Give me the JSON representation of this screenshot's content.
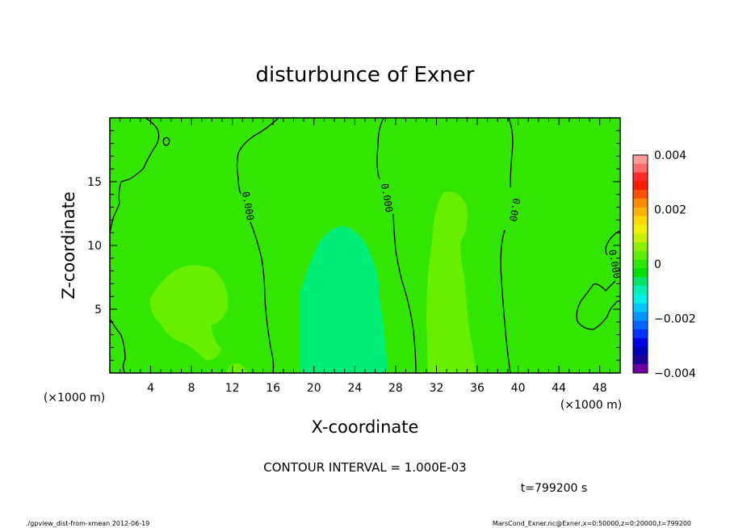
{
  "chart_data": {
    "type": "heatmap",
    "title": "disturbunce of Exner",
    "xlabel": "X-coordinate",
    "ylabel": "Z-coordinate",
    "x_unit_label": "(×1000 m)",
    "xlim": [
      0,
      50
    ],
    "ylim": [
      0,
      20
    ],
    "xticks": [
      4,
      8,
      12,
      16,
      20,
      24,
      28,
      32,
      36,
      40,
      44,
      48
    ],
    "yticks": [
      5,
      10,
      15
    ],
    "colorbar": {
      "range": [
        -0.004,
        0.004
      ],
      "tick_labels": [
        "0.004",
        "0.002",
        "0",
        "−0.002",
        "−0.004"
      ],
      "tick_values": [
        0.004,
        0.002,
        0,
        -0.002,
        -0.004
      ],
      "colors_top_to_bottom": [
        "#ff9a9a",
        "#ff6a6a",
        "#ff2a2a",
        "#ff1a00",
        "#ff5000",
        "#ff8c00",
        "#ffb000",
        "#ffd800",
        "#f0f000",
        "#c8f000",
        "#8cf000",
        "#5ef000",
        "#2ee800",
        "#00e000",
        "#00e66a",
        "#00f0b4",
        "#00f0e6",
        "#00c8ff",
        "#0096ff",
        "#0064ff",
        "#0032ff",
        "#0000e6",
        "#0000b4",
        "#1e0096",
        "#7000a0"
      ]
    },
    "contour_interval_text": "CONTOUR INTERVAL = 1.000E-03",
    "contour_labels": [
      "0",
      "0.000",
      "0.000",
      "0.00",
      "0.000"
    ],
    "field_regions": [
      {
        "name": "background",
        "value": 0.0003
      },
      {
        "name": "positive-left",
        "x_center": 7.5,
        "z_center": 6.5,
        "value": 0.0007
      },
      {
        "name": "negative-center",
        "x_center": 23,
        "z_center": 5,
        "value": -0.0003
      },
      {
        "name": "positive-right",
        "x_center": 33,
        "z_center": 7,
        "value": 0.0007
      },
      {
        "name": "background-right",
        "x_center": 44,
        "z_center": 10,
        "value": 0.0003
      }
    ]
  },
  "time_label": "t=799200 s",
  "footer_left": "./gpview_dist-from-xmean  2012-06-19",
  "footer_right": "MarsCond_Exner.nc@Exner,x=0:50000,z=0:20000,t=799200",
  "colors": {
    "field_zero": "#33e600",
    "field_positive": "#66f000",
    "field_negative": "#00ee77"
  }
}
